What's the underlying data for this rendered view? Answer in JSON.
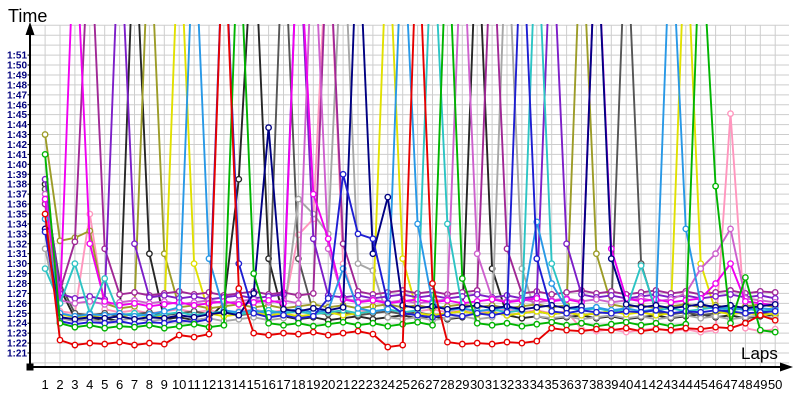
{
  "chart_data": {
    "type": "line",
    "title": "",
    "xlabel": "Laps",
    "ylabel": "Time",
    "x": [
      1,
      2,
      3,
      4,
      5,
      6,
      7,
      8,
      9,
      10,
      11,
      12,
      13,
      14,
      15,
      16,
      17,
      18,
      19,
      20,
      21,
      22,
      23,
      24,
      25,
      26,
      27,
      28,
      29,
      30,
      31,
      32,
      33,
      34,
      35,
      36,
      37,
      38,
      39,
      40,
      41,
      42,
      43,
      44,
      45,
      46,
      47,
      48,
      49,
      50
    ],
    "y_tick_labels": [
      "1:21",
      "1:22",
      "1:23",
      "1:24",
      "1:25",
      "1:26",
      "1:27",
      "1:28",
      "1:29",
      "1:30",
      "1:31",
      "1:32",
      "1:33",
      "1:34",
      "1:35",
      "1:36",
      "1:37",
      "1:38",
      "1:39",
      "1:40",
      "1:41",
      "1:42",
      "1:43",
      "1:44",
      "1:45",
      "1:46",
      "1:47",
      "1:48",
      "1:49",
      "1:50",
      "1:51"
    ],
    "y_tick_base_seconds": 81,
    "y_view_range_seconds": [
      79.6,
      114.4
    ],
    "grid": true,
    "legend": "none",
    "marker": "open-circle",
    "offscale_spike_seconds": 125,
    "series": [
      {
        "name": "red",
        "color": "#e60000",
        "values": [
          95.0,
          82.3,
          81.8,
          82.0,
          81.9,
          82.1,
          81.8,
          82.0,
          81.9,
          82.8,
          82.6,
          82.9,
          125,
          87.5,
          83.0,
          82.8,
          83.0,
          82.9,
          83.1,
          82.8,
          83.0,
          83.2,
          82.9,
          81.6,
          81.8,
          125,
          88.0,
          82.1,
          81.9,
          82.0,
          81.9,
          82.1,
          82.0,
          82.2,
          83.5,
          83.3,
          83.2,
          83.4,
          83.3,
          83.5,
          83.2,
          83.4,
          83.3,
          83.5,
          83.4,
          83.6,
          83.5,
          84.0,
          84.8,
          84.3
        ]
      },
      {
        "name": "green",
        "color": "#00b400",
        "values": [
          101.0,
          84.0,
          83.6,
          83.8,
          83.5,
          83.7,
          83.6,
          83.8,
          83.5,
          83.7,
          83.9,
          83.6,
          83.8,
          125,
          89.0,
          84.0,
          83.8,
          84.0,
          83.7,
          83.9,
          84.1,
          83.8,
          84.0,
          83.7,
          83.9,
          84.1,
          83.8,
          125,
          88.5,
          84.0,
          83.8,
          84.0,
          83.7,
          83.9,
          84.1,
          83.8,
          84.0,
          83.7,
          83.9,
          84.1,
          83.8,
          84.0,
          83.7,
          83.9,
          125,
          97.8,
          84.0,
          88.6,
          83.3,
          83.1
        ]
      },
      {
        "name": "blue",
        "color": "#1e1ed2",
        "values": [
          93.2,
          84.2,
          83.9,
          84.1,
          84.0,
          84.2,
          83.9,
          84.1,
          84.0,
          84.3,
          84.1,
          84.4,
          125,
          90.0,
          85.0,
          84.6,
          84.8,
          84.5,
          84.7,
          86.5,
          99.0,
          93.0,
          92.5,
          86.0,
          85.0,
          84.8,
          84.6,
          84.9,
          84.7,
          85.0,
          84.8,
          85.1,
          125,
          90.5,
          85.2,
          85.0,
          85.3,
          85.1,
          85.0,
          85.2,
          85.1,
          85.3,
          85.0,
          85.2,
          85.1,
          85.3,
          85.2,
          85.0,
          85.1,
          85.2
        ]
      },
      {
        "name": "navy",
        "color": "#000082",
        "values": [
          93.5,
          84.6,
          84.4,
          84.6,
          84.5,
          84.7,
          84.4,
          84.6,
          84.5,
          84.8,
          84.6,
          84.9,
          85.1,
          84.8,
          87.0,
          103.7,
          85.4,
          85.2,
          85.5,
          85.3,
          85.6,
          125,
          91.0,
          96.7,
          85.8,
          85.5,
          85.7,
          85.4,
          85.6,
          85.8,
          85.5,
          85.7,
          85.4,
          85.6,
          85.8,
          85.5,
          85.7,
          125,
          90.5,
          85.9,
          85.6,
          85.8,
          85.5,
          85.7,
          85.9,
          85.6,
          85.8,
          85.5,
          85.7,
          85.9
        ]
      },
      {
        "name": "dodgerblue",
        "color": "#2898e6",
        "values": [
          94.5,
          85.0,
          84.7,
          84.9,
          84.8,
          85.0,
          84.7,
          84.9,
          85.2,
          85.6,
          125,
          90.5,
          85.3,
          85.1,
          85.3,
          85.0,
          85.2,
          85.4,
          85.1,
          85.3,
          89.5,
          85.5,
          85.2,
          85.4,
          125,
          94.0,
          86.0,
          85.3,
          85.5,
          85.2,
          85.4,
          85.6,
          85.3,
          94.2,
          88.0,
          85.5,
          85.4,
          85.6,
          85.3,
          85.5,
          85.2,
          85.4,
          125,
          93.5,
          86.0,
          85.4,
          85.6,
          85.3,
          85.5,
          85.4
        ]
      },
      {
        "name": "cyan",
        "color": "#2cc4c4",
        "values": [
          89.5,
          86.0,
          90.0,
          85.0,
          88.5,
          84.8,
          85.0,
          84.7,
          84.9,
          85.1,
          84.8,
          85.0,
          85.2,
          84.9,
          85.1,
          85.3,
          85.0,
          85.2,
          84.9,
          85.1,
          85.3,
          85.0,
          85.2,
          85.4,
          85.1,
          85.3,
          125,
          94.0,
          85.5,
          85.2,
          85.4,
          85.1,
          85.3,
          125,
          90.0,
          85.6,
          85.3,
          85.5,
          85.2,
          85.4,
          89.8,
          85.3,
          85.5,
          85.2,
          85.4,
          85.6,
          85.3,
          85.5,
          85.2,
          85.4
        ]
      },
      {
        "name": "magenta",
        "color": "#f000f0",
        "values": [
          96.5,
          86.0,
          125,
          92.0,
          86.2,
          85.8,
          86.0,
          85.7,
          85.9,
          86.1,
          85.8,
          86.0,
          86.2,
          85.9,
          86.1,
          86.3,
          86.0,
          125,
          97.0,
          92.5,
          86.4,
          86.1,
          86.3,
          86.0,
          86.2,
          86.4,
          86.1,
          86.3,
          86.0,
          86.2,
          86.4,
          86.1,
          86.3,
          86.5,
          86.2,
          86.4,
          86.1,
          125,
          91.5,
          86.5,
          86.2,
          86.4,
          86.1,
          86.3,
          86.5,
          88.0,
          90.0,
          86.2,
          86.0,
          85.8
        ]
      },
      {
        "name": "orchid",
        "color": "#cd60cd",
        "values": [
          97.0,
          86.3,
          86.0,
          86.2,
          85.9,
          86.1,
          86.3,
          86.0,
          86.2,
          85.9,
          86.1,
          86.3,
          86.0,
          86.2,
          86.4,
          86.1,
          86.3,
          86.0,
          125,
          91.5,
          86.5,
          86.2,
          86.4,
          86.1,
          86.3,
          86.0,
          86.2,
          86.4,
          125,
          91.0,
          86.5,
          86.2,
          86.4,
          86.1,
          86.3,
          86.5,
          86.2,
          86.4,
          86.1,
          86.3,
          86.5,
          86.2,
          86.4,
          87.0,
          89.5,
          91.0,
          93.5,
          86.5,
          86.3,
          86.1
        ]
      },
      {
        "name": "darkviolet",
        "color": "#7d1ec8",
        "values": [
          98.5,
          87.0,
          86.5,
          86.7,
          86.4,
          125,
          92.0,
          86.6,
          86.8,
          86.5,
          86.7,
          86.4,
          86.6,
          86.8,
          86.5,
          86.7,
          86.9,
          125,
          92.5,
          86.8,
          86.6,
          86.8,
          86.5,
          86.7,
          86.9,
          86.6,
          86.8,
          86.5,
          86.7,
          86.9,
          86.6,
          86.8,
          86.5,
          86.7,
          125,
          92.0,
          86.9,
          86.6,
          86.8,
          86.5,
          86.7,
          86.9,
          86.6,
          86.8,
          86.5,
          86.7,
          86.9,
          86.6,
          86.8,
          86.5
        ]
      },
      {
        "name": "purple",
        "color": "#a02896",
        "values": [
          96.0,
          87.3,
          92.2,
          125,
          91.5,
          86.9,
          87.1,
          86.8,
          87.0,
          87.2,
          86.9,
          87.1,
          86.8,
          87.0,
          87.2,
          86.9,
          87.1,
          86.8,
          87.0,
          125,
          92.0,
          87.2,
          86.9,
          87.1,
          87.3,
          87.0,
          87.2,
          86.9,
          87.1,
          87.3,
          125,
          91.5,
          87.0,
          87.2,
          86.9,
          87.1,
          87.3,
          87.0,
          87.2,
          86.9,
          87.1,
          87.3,
          87.0,
          87.2,
          86.9,
          87.1,
          87.3,
          87.0,
          87.2,
          87.1
        ]
      },
      {
        "name": "yellow",
        "color": "#e0e000",
        "values": [
          95.0,
          84.9,
          84.6,
          84.8,
          84.5,
          84.7,
          84.9,
          84.6,
          84.8,
          125,
          90.0,
          85.0,
          84.7,
          84.9,
          85.1,
          84.8,
          85.0,
          84.7,
          84.9,
          85.1,
          84.8,
          85.0,
          85.2,
          125,
          90.5,
          85.0,
          84.8,
          85.0,
          85.2,
          84.9,
          85.1,
          84.8,
          85.0,
          85.2,
          84.9,
          85.1,
          84.8,
          85.0,
          85.2,
          84.9,
          85.1,
          84.8,
          85.0,
          125,
          90.0,
          85.2,
          84.9,
          85.1,
          84.8,
          85.0
        ]
      },
      {
        "name": "olive",
        "color": "#9c9c28",
        "values": [
          103.0,
          92.3,
          92.6,
          93.3,
          86.0,
          85.5,
          85.7,
          125,
          91.0,
          85.6,
          85.8,
          85.5,
          85.7,
          85.9,
          85.6,
          85.8,
          85.5,
          85.7,
          85.9,
          85.6,
          85.8,
          85.5,
          85.7,
          85.9,
          85.6,
          85.8,
          85.5,
          85.7,
          85.9,
          85.6,
          85.8,
          85.5,
          85.7,
          85.9,
          85.6,
          85.8,
          125,
          91.0,
          85.9,
          85.6,
          85.8,
          85.5,
          85.7,
          85.9,
          85.6,
          85.8,
          85.5,
          85.7,
          85.9,
          85.6
        ]
      },
      {
        "name": "gray",
        "color": "#a6a6a6",
        "values": [
          91.5,
          84.5,
          84.2,
          84.4,
          84.1,
          84.3,
          84.5,
          84.2,
          84.4,
          84.1,
          84.3,
          84.5,
          84.2,
          84.4,
          84.6,
          84.3,
          84.5,
          96.5,
          95.0,
          93.0,
          125,
          90.0,
          89.3,
          84.6,
          84.4,
          84.6,
          84.3,
          84.5,
          84.7,
          84.4,
          84.6,
          125,
          89.5,
          84.7,
          84.5,
          84.7,
          84.4,
          84.6,
          84.8,
          84.5,
          84.7,
          84.4,
          84.6,
          84.8,
          84.5,
          84.7,
          84.4,
          84.6,
          84.8,
          84.5
        ]
      },
      {
        "name": "darkgray",
        "color": "#555555",
        "values": [
          97.5,
          88.0,
          85.0,
          84.8,
          85.0,
          84.7,
          84.9,
          85.1,
          84.8,
          85.0,
          85.2,
          84.9,
          85.1,
          84.8,
          85.0,
          85.2,
          125,
          90.5,
          85.1,
          84.9,
          85.1,
          84.8,
          85.0,
          85.2,
          84.9,
          85.1,
          84.8,
          85.0,
          85.2,
          84.9,
          85.1,
          84.8,
          85.0,
          85.2,
          84.9,
          85.1,
          84.8,
          85.0,
          85.2,
          125,
          90.0,
          85.1,
          84.9,
          85.1,
          84.8,
          85.0,
          85.2,
          84.9,
          85.1,
          84.8
        ]
      },
      {
        "name": "black",
        "color": "#262626",
        "values": [
          98.0,
          87.5,
          84.5,
          84.3,
          84.5,
          84.2,
          125,
          91.0,
          84.4,
          84.6,
          84.3,
          84.5,
          86.0,
          98.5,
          125,
          90.5,
          84.7,
          84.4,
          84.6,
          84.3,
          84.5,
          84.7,
          84.4,
          84.6,
          84.8,
          84.5,
          84.7,
          84.4,
          84.6,
          125,
          89.5,
          84.8,
          84.5,
          84.7,
          84.4,
          84.6,
          84.8,
          84.5,
          84.7,
          84.4,
          84.6,
          84.8,
          84.5,
          84.7,
          84.9,
          84.6,
          84.8,
          84.5,
          84.7,
          84.9
        ]
      },
      {
        "name": "pink",
        "color": "#ff96be",
        "values": [
          96.2,
          85.2,
          85.0,
          95.0,
          85.4,
          85.1,
          85.3,
          85.0,
          85.2,
          85.4,
          85.1,
          85.3,
          85.0,
          85.2,
          85.4,
          85.1,
          85.3,
          92.9,
          94.5,
          125,
          90.0,
          85.3,
          85.1,
          85.3,
          85.0,
          85.2,
          85.4,
          85.1,
          85.3,
          85.0,
          85.2,
          85.4,
          85.1,
          85.3,
          85.0,
          85.2,
          83.4,
          83.2,
          83.4,
          83.1,
          83.3,
          83.5,
          83.2,
          83.4,
          83.1,
          83.3,
          105.1,
          83.5,
          83.2,
          83.4
        ]
      }
    ]
  }
}
